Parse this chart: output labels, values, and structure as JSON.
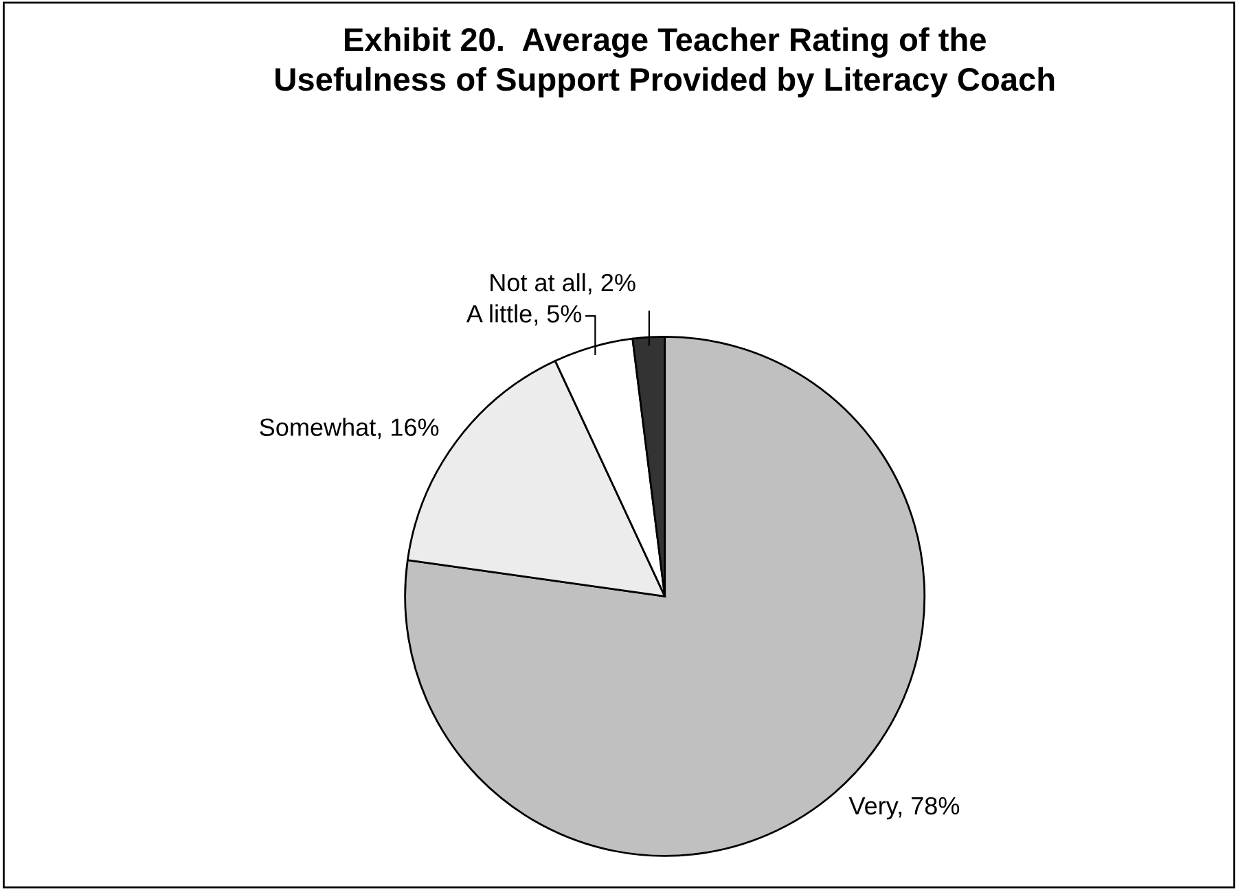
{
  "chart_data": {
    "type": "pie",
    "title": "Exhibit 20.  Average Teacher Rating of the\nUsefulness of Support Provided by Literacy Coach",
    "categories": [
      "Very",
      "Somewhat",
      "A little",
      "Not at all"
    ],
    "values": [
      78,
      16,
      5,
      2
    ],
    "colors": [
      "#c0c0c0",
      "#ececec",
      "#ffffff",
      "#333333"
    ],
    "value_labels": [
      "78%",
      "16%",
      "5%",
      "2%"
    ],
    "legend": false
  }
}
